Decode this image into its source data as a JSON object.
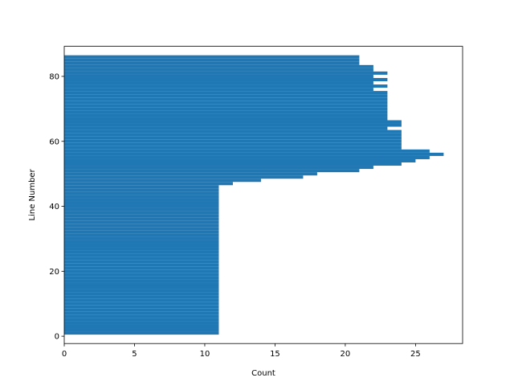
{
  "chart_data": {
    "type": "bar",
    "orientation": "horizontal",
    "title": "",
    "xlabel": "Count",
    "ylabel": "Line Number",
    "xlim": [
      0,
      28.35
    ],
    "ylim": [
      -2.25,
      89.25
    ],
    "xticks": [
      0,
      5,
      10,
      15,
      20,
      25
    ],
    "yticks": [
      0,
      20,
      40,
      60,
      80
    ],
    "grid": false,
    "bar_color": "#1f77b4",
    "categories": [
      1,
      2,
      3,
      4,
      5,
      6,
      7,
      8,
      9,
      10,
      11,
      12,
      13,
      14,
      15,
      16,
      17,
      18,
      19,
      20,
      21,
      22,
      23,
      24,
      25,
      26,
      27,
      28,
      29,
      30,
      31,
      32,
      33,
      34,
      35,
      36,
      37,
      38,
      39,
      40,
      41,
      42,
      43,
      44,
      45,
      46,
      47,
      48,
      49,
      50,
      51,
      52,
      53,
      54,
      55,
      56,
      57,
      58,
      59,
      60,
      61,
      62,
      63,
      64,
      65,
      66,
      67,
      68,
      69,
      70,
      71,
      72,
      73,
      74,
      75,
      76,
      77,
      78,
      79,
      80,
      81,
      82,
      83,
      84,
      85,
      86
    ],
    "values": [
      11,
      11,
      11,
      11,
      11,
      11,
      11,
      11,
      11,
      11,
      11,
      11,
      11,
      11,
      11,
      11,
      11,
      11,
      11,
      11,
      11,
      11,
      11,
      11,
      11,
      11,
      11,
      11,
      11,
      11,
      11,
      11,
      11,
      11,
      11,
      11,
      11,
      11,
      11,
      11,
      11,
      11,
      11,
      11,
      11,
      11,
      12,
      14,
      17,
      18,
      21,
      22,
      24,
      25,
      26,
      27,
      26,
      24,
      24,
      24,
      24,
      24,
      24,
      23,
      24,
      24,
      23,
      23,
      23,
      23,
      23,
      23,
      23,
      23,
      23,
      22,
      23,
      22,
      23,
      22,
      23,
      22,
      22,
      21,
      21,
      21
    ]
  }
}
